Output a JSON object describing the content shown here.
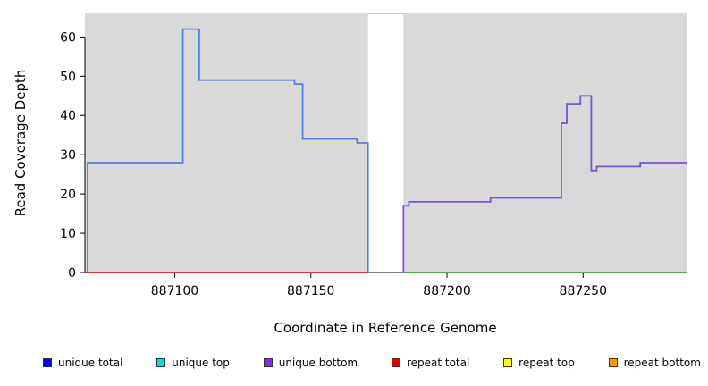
{
  "chart_data": {
    "type": "line",
    "title": "",
    "xlabel": "Coordinate in Reference Genome",
    "ylabel": "Read Coverage Depth",
    "xlim": [
      887067,
      887288
    ],
    "ylim": [
      0,
      66
    ],
    "xticks": [
      887100,
      887150,
      887200,
      887250
    ],
    "yticks": [
      0,
      10,
      20,
      30,
      40,
      50,
      60
    ],
    "grid": false,
    "legend_position": "bottom",
    "panel_color": "#d9d9d9",
    "gap_region": {
      "x0": 887171,
      "x1": 887184
    },
    "background_panels": [
      {
        "name": "left-panel",
        "x0": 887067,
        "x1": 887171,
        "color": "#d9d9d9"
      },
      {
        "name": "right-panel",
        "x0": 887184,
        "x1": 887288,
        "color": "#d9d9d9"
      }
    ],
    "series": [
      {
        "name": "unique-coverage-left",
        "color": "#4d82ea",
        "points": [
          [
            887068,
            0
          ],
          [
            887068,
            28
          ],
          [
            887103,
            28
          ],
          [
            887103,
            62
          ],
          [
            887109,
            62
          ],
          [
            887109,
            49
          ],
          [
            887144,
            49
          ],
          [
            887144,
            48
          ],
          [
            887147,
            48
          ],
          [
            887147,
            34
          ],
          [
            887167,
            34
          ],
          [
            887167,
            33
          ],
          [
            887171,
            33
          ],
          [
            887171,
            0
          ]
        ]
      },
      {
        "name": "repeat-baseline-left",
        "color": "#dd2222",
        "points": [
          [
            887067,
            0
          ],
          [
            887171,
            0
          ]
        ]
      },
      {
        "name": "unique-coverage-right",
        "color": "#7b52d2",
        "points": [
          [
            887184,
            0
          ],
          [
            887184,
            17
          ],
          [
            887186,
            17
          ],
          [
            887186,
            18
          ],
          [
            887216,
            18
          ],
          [
            887216,
            19
          ],
          [
            887242,
            19
          ],
          [
            887242,
            38
          ],
          [
            887244,
            38
          ],
          [
            887244,
            43
          ],
          [
            887249,
            43
          ],
          [
            887249,
            45
          ],
          [
            887253,
            45
          ],
          [
            887253,
            26
          ],
          [
            887255,
            26
          ],
          [
            887255,
            27
          ],
          [
            887271,
            27
          ],
          [
            887271,
            28
          ],
          [
            887288,
            28
          ]
        ]
      },
      {
        "name": "baseline-right",
        "color": "#33aa33",
        "points": [
          [
            887184,
            0
          ],
          [
            887288,
            0
          ]
        ]
      }
    ],
    "legend": [
      {
        "label": "unique total",
        "color": "#0000ee"
      },
      {
        "label": "unique top",
        "color": "#00dddd"
      },
      {
        "label": "unique bottom",
        "color": "#8a2be2"
      },
      {
        "label": "repeat total",
        "color": "#dd0000"
      },
      {
        "label": "repeat top",
        "color": "#ffff00"
      },
      {
        "label": "repeat bottom",
        "color": "#ff9900"
      }
    ]
  }
}
